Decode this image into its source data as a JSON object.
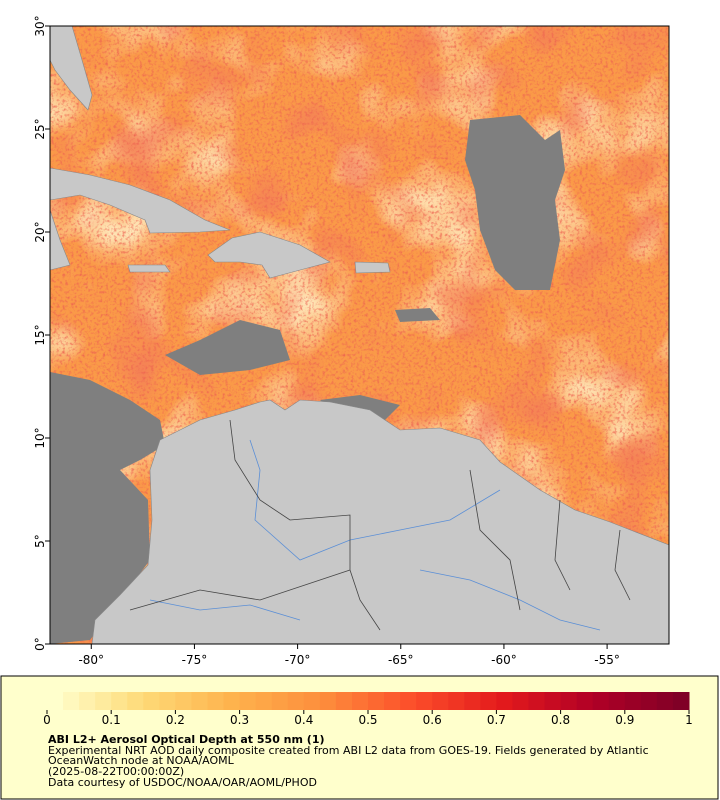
{
  "map": {
    "lon_ticks": [
      {
        "value": -80,
        "label": "-80°"
      },
      {
        "value": -75,
        "label": "-75°"
      },
      {
        "value": -70,
        "label": "-70°"
      },
      {
        "value": -65,
        "label": "-65°"
      },
      {
        "value": -60,
        "label": "-60°"
      },
      {
        "value": -55,
        "label": "-55°"
      }
    ],
    "lat_ticks": [
      {
        "value": 0,
        "label": "0°"
      },
      {
        "value": 5,
        "label": "5°"
      },
      {
        "value": 10,
        "label": "10°"
      },
      {
        "value": 15,
        "label": "15°"
      },
      {
        "value": 20,
        "label": "20°"
      },
      {
        "value": 25,
        "label": "25°"
      },
      {
        "value": 30,
        "label": "30°"
      }
    ],
    "xlim": [
      -82,
      -52
    ],
    "ylim": [
      0,
      30
    ]
  },
  "colorbar": {
    "range": [
      0,
      1
    ],
    "ticks": [
      0,
      0.1,
      0.2,
      0.3,
      0.4,
      0.5,
      0.6,
      0.7,
      0.8,
      0.9,
      1
    ]
  },
  "caption": {
    "title": "ABI L2+ Aerosol Optical Depth at 550 nm (1)",
    "lines": [
      "Experimental NRT AOD daily composite created from ABI L2 data from GOES-19. Fields generated by Atlantic",
      "OceanWatch node at NOAA/AOML",
      "(2025-08-22T00:00:00Z)",
      "Data courtesy of USDOC/NOAA/OAR/AOML/PHOD"
    ]
  }
}
